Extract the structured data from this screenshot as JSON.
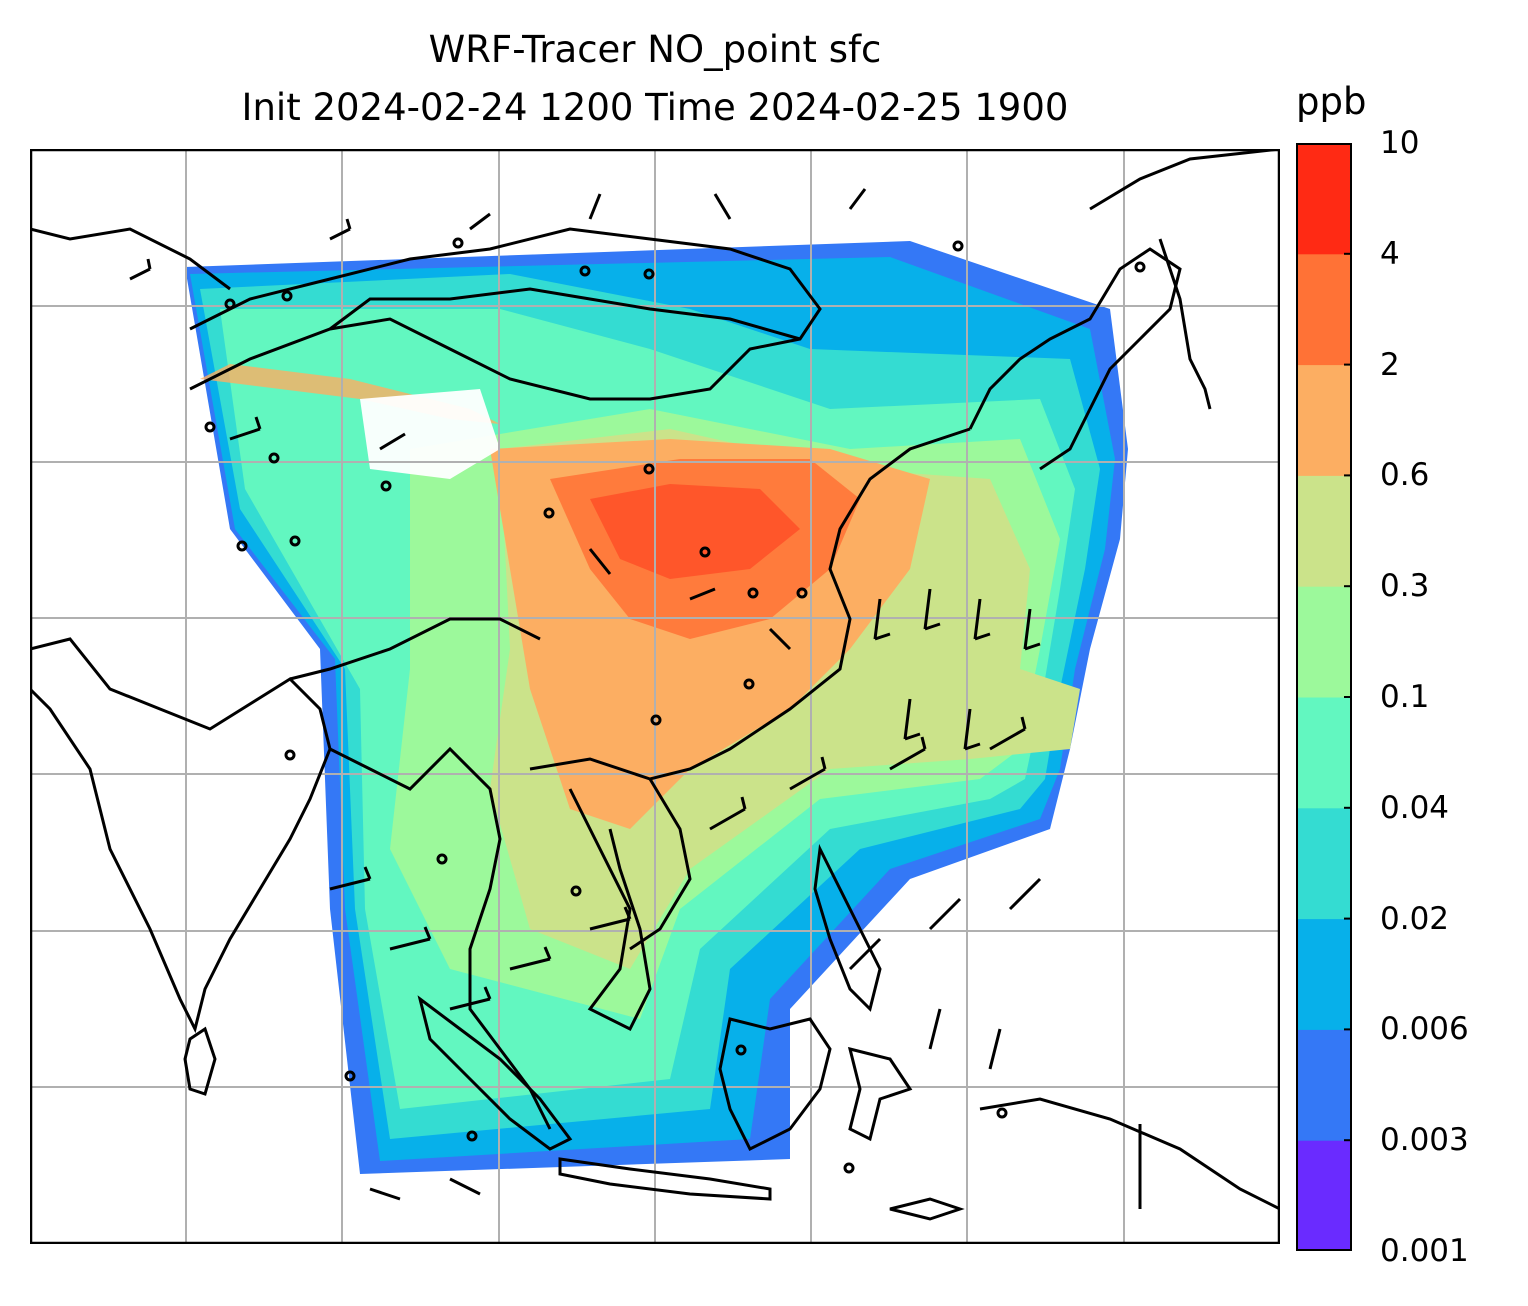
{
  "title": {
    "line1": "WRF-Tracer NO_point sfc",
    "line2": "Init 2024-02-24 1200 Time 2024-02-25 1900"
  },
  "colorbar": {
    "unit": "ppb",
    "levels": [
      "0.001",
      "0.003",
      "0.006",
      "0.02",
      "0.04",
      "0.1",
      "0.3",
      "0.6",
      "2",
      "4",
      "10"
    ],
    "colors": [
      "#6a2bff",
      "#3478f6",
      "#07b0ea",
      "#34dcd2",
      "#62f7c0",
      "#9cf99b",
      "#cbe38a",
      "#fcae62",
      "#ff7236",
      "#ff2a14"
    ]
  },
  "map": {
    "gridlines": true,
    "contour_field": "NO_point",
    "wind_barbs": true,
    "colors": {
      "coast": "#000000",
      "grid": "#b0b0b0",
      "frame": "#000000"
    }
  }
}
